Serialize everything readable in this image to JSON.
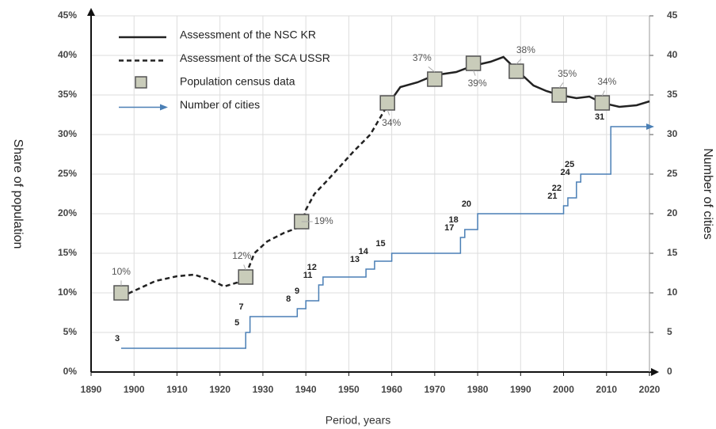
{
  "chart_data": {
    "type": "line",
    "x_label": "Period, years",
    "y_label": "Share of population",
    "y2_label": "Number of cities",
    "xlim": [
      1890,
      2020
    ],
    "xticks": [
      1890,
      1900,
      1910,
      1920,
      1930,
      1940,
      1950,
      1960,
      1970,
      1980,
      1990,
      2000,
      2010,
      2020
    ],
    "ylim": [
      0,
      45
    ],
    "yticks": [
      {
        "value": 0,
        "label": "0%"
      },
      {
        "value": 5,
        "label": "5%"
      },
      {
        "value": 10,
        "label": "10%"
      },
      {
        "value": 15,
        "label": "15%"
      },
      {
        "value": 20,
        "label": "20%"
      },
      {
        "value": 25,
        "label": "25%"
      },
      {
        "value": 30,
        "label": "30%"
      },
      {
        "value": 35,
        "label": "35%"
      },
      {
        "value": 40,
        "label": "40%"
      },
      {
        "value": 45,
        "label": "45%"
      }
    ],
    "y2lim": [
      0,
      45
    ],
    "y2ticks": [
      0,
      5,
      10,
      15,
      20,
      25,
      30,
      35,
      40,
      45
    ],
    "grid": true,
    "legend": "upper left",
    "series": [
      {
        "name": "Assessment of the NSC KR",
        "type": "line",
        "style": "solid",
        "color": "#222222",
        "x": [
          1959,
          1962,
          1966,
          1970,
          1975,
          1979,
          1983,
          1986,
          1989,
          1993,
          1996,
          1999,
          2003,
          2006,
          2009,
          2013,
          2017,
          2020
        ],
        "values": [
          33.7,
          36,
          36.6,
          37.5,
          37.9,
          38.7,
          39.2,
          39.8,
          38.2,
          36.2,
          35.5,
          35,
          34.6,
          34.8,
          34,
          33.5,
          33.7,
          34.2
        ]
      },
      {
        "name": "Assessment of the SCA USSR",
        "type": "line",
        "style": "dashed",
        "color": "#222222",
        "x": [
          1897,
          1901,
          1905,
          1910,
          1914,
          1918,
          1921,
          1924,
          1926,
          1928,
          1931,
          1935,
          1939,
          1940,
          1942,
          1945,
          1948,
          1951,
          1955,
          1959
        ],
        "values": [
          9.5,
          10.5,
          11.5,
          12.1,
          12.3,
          11.6,
          10.8,
          11.3,
          12.2,
          15,
          16.5,
          17.6,
          18.4,
          20.5,
          22.5,
          24.2,
          26,
          27.8,
          30,
          33.7
        ]
      },
      {
        "name": "Population census data",
        "type": "scatter",
        "color": "#c9ccba",
        "x": [
          1897,
          1926,
          1939,
          1959,
          1970,
          1979,
          1989,
          1999,
          2009
        ],
        "values": [
          10,
          12,
          19,
          34,
          37,
          39,
          38,
          35,
          34
        ],
        "value_labels": [
          "10%",
          "12%",
          "19%",
          "34%",
          "37%",
          "39%",
          "38%",
          "35%",
          "34%"
        ]
      },
      {
        "name": "Number of cities",
        "type": "step",
        "axis": "y2",
        "color": "#4a7fb5",
        "x": [
          1897,
          1926,
          1927,
          1938,
          1940,
          1943,
          1944,
          1954,
          1956,
          1960,
          1976,
          1977,
          1980,
          2000,
          2001,
          2003,
          2004,
          2011,
          2020
        ],
        "values": [
          3,
          5,
          7,
          8,
          9,
          11,
          12,
          13,
          14,
          15,
          17,
          18,
          20,
          21,
          22,
          24,
          25,
          31,
          31
        ]
      }
    ]
  }
}
